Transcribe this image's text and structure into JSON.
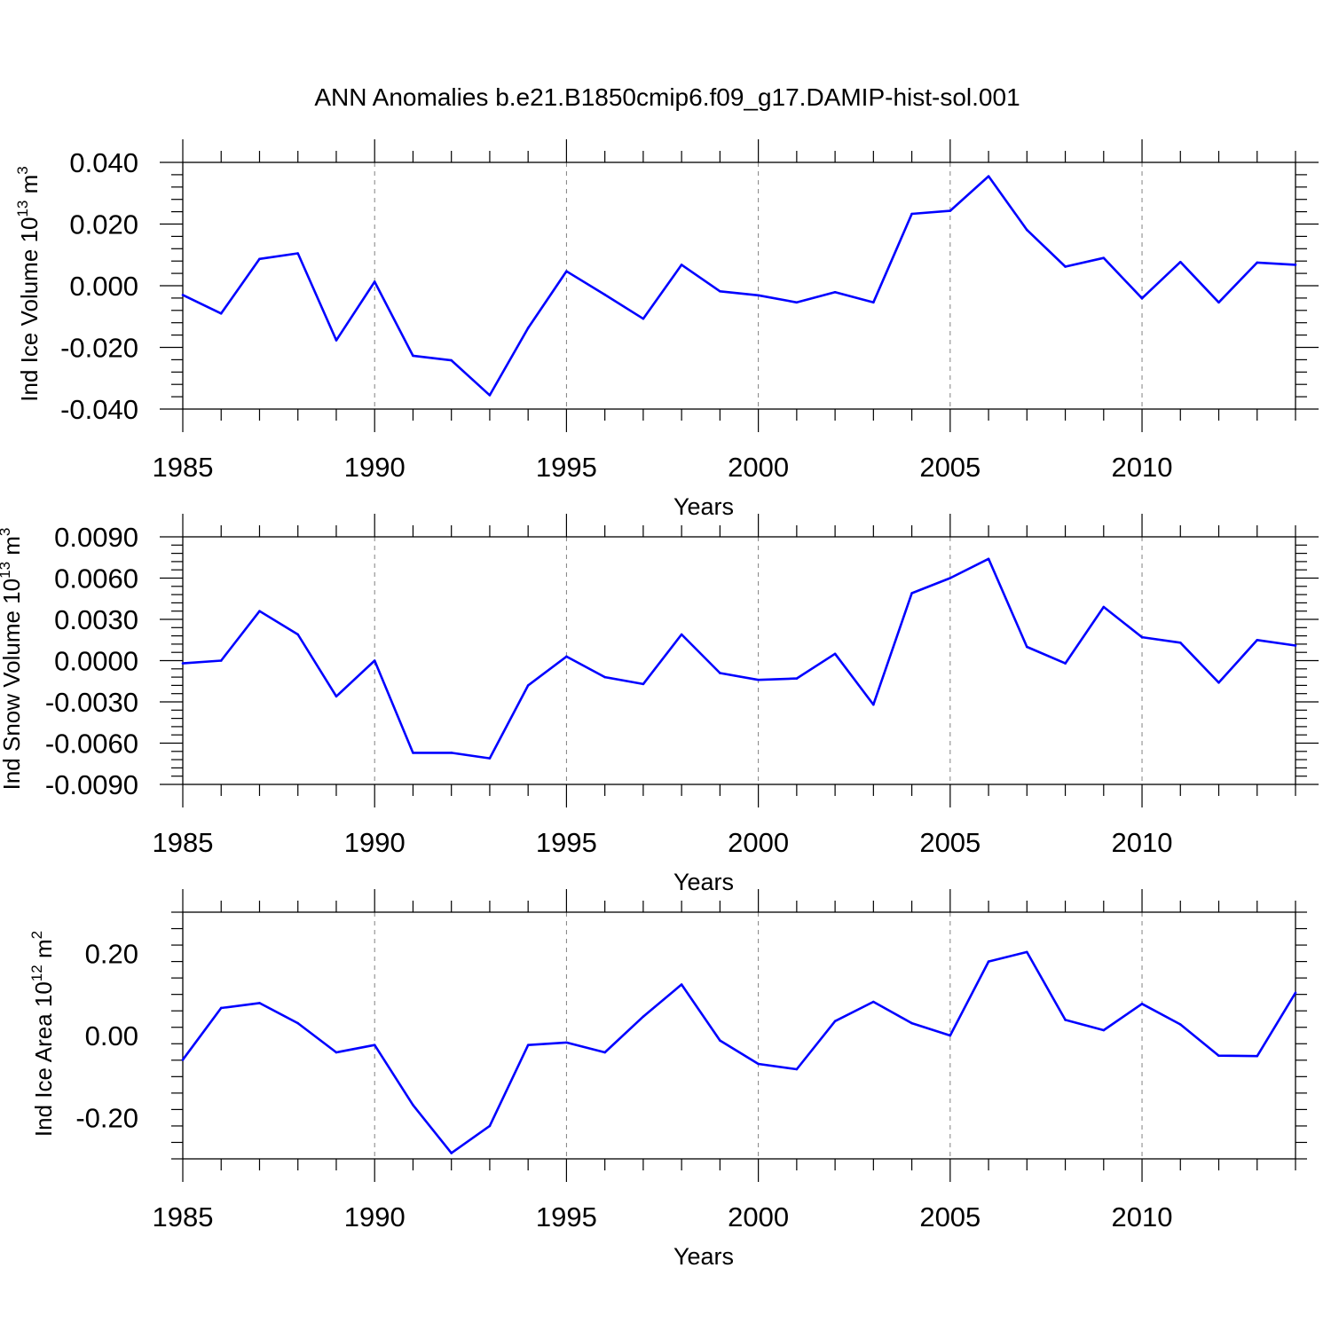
{
  "figure": {
    "title": "ANN Anomalies b.e21.B1850cmip6.f09_g17.DAMIP-hist-sol.001"
  },
  "chart_data": [
    {
      "type": "line",
      "title": "",
      "xlabel": "Years",
      "ylabel": "Ind Ice Volume 10",
      "ylabel_sup": "13",
      "ylabel_unit": "m",
      "ylabel_unit_sup": "3",
      "xlim": [
        1985,
        2014
      ],
      "ylim": [
        -0.04,
        0.04
      ],
      "xticks": [
        1985,
        1990,
        1995,
        2000,
        2005,
        2010
      ],
      "xtick_labels": [
        "1985",
        "1990",
        "1995",
        "2000",
        "2005",
        "2010"
      ],
      "yticks": [
        -0.04,
        -0.02,
        0.0,
        0.02,
        0.04
      ],
      "ytick_labels": [
        "-0.040",
        "-0.020",
        "0.000",
        "0.020",
        "0.040"
      ],
      "grid": "vertical dashed at major x ticks",
      "color": "#0000ff",
      "x": [
        1985,
        1986,
        1987,
        1988,
        1989,
        1990,
        1991,
        1992,
        1993,
        1994,
        1995,
        1996,
        1997,
        1998,
        1999,
        2000,
        2001,
        2002,
        2003,
        2004,
        2005,
        2006,
        2007,
        2008,
        2009,
        2010,
        2011,
        2012,
        2013,
        2014
      ],
      "values": [
        -0.003,
        -0.009,
        0.0087,
        0.0105,
        -0.0177,
        0.0013,
        -0.0227,
        -0.0242,
        -0.0355,
        -0.0137,
        0.0047,
        -0.0029,
        -0.0107,
        0.0068,
        -0.0018,
        -0.0031,
        -0.0054,
        -0.0021,
        -0.0054,
        0.0233,
        0.0243,
        0.0355,
        0.0181,
        0.0062,
        0.009,
        -0.0041,
        0.0077,
        -0.0054,
        0.0075,
        0.0068
      ]
    },
    {
      "type": "line",
      "title": "",
      "xlabel": "Years",
      "ylabel": "Ind Snow Volume 10",
      "ylabel_sup": "13",
      "ylabel_unit": "m",
      "ylabel_unit_sup": "3",
      "xlim": [
        1985,
        2014
      ],
      "ylim": [
        -0.009,
        0.009
      ],
      "xticks": [
        1985,
        1990,
        1995,
        2000,
        2005,
        2010
      ],
      "xtick_labels": [
        "1985",
        "1990",
        "1995",
        "2000",
        "2005",
        "2010"
      ],
      "yticks": [
        -0.009,
        -0.006,
        -0.003,
        0.0,
        0.003,
        0.006,
        0.009
      ],
      "ytick_labels": [
        "-0.0090",
        "-0.0060",
        "-0.0030",
        "0.0000",
        "0.0030",
        "0.0060",
        "0.0090"
      ],
      "grid": "vertical dashed at major x ticks",
      "color": "#0000ff",
      "x": [
        1985,
        1986,
        1987,
        1988,
        1989,
        1990,
        1991,
        1992,
        1993,
        1994,
        1995,
        1996,
        1997,
        1998,
        1999,
        2000,
        2001,
        2002,
        2003,
        2004,
        2005,
        2006,
        2007,
        2008,
        2009,
        2010,
        2011,
        2012,
        2013,
        2014
      ],
      "values": [
        -0.0002,
        0.0,
        0.0036,
        0.0019,
        -0.0026,
        0.0,
        -0.0067,
        -0.0067,
        -0.0071,
        -0.0018,
        0.0003,
        -0.0012,
        -0.0017,
        0.0019,
        -0.0009,
        -0.0014,
        -0.0013,
        0.0005,
        -0.0032,
        0.0049,
        0.006,
        0.0074,
        0.001,
        -0.0002,
        0.0039,
        0.0017,
        0.0013,
        -0.0016,
        0.0015,
        0.0011
      ]
    },
    {
      "type": "line",
      "title": "",
      "xlabel": "Years",
      "ylabel": "Ind Ice Area 10",
      "ylabel_sup": "12",
      "ylabel_unit": "m",
      "ylabel_unit_sup": "2",
      "xlim": [
        1985,
        2014
      ],
      "ylim": [
        -0.3,
        0.3
      ],
      "xticks": [
        1985,
        1990,
        1995,
        2000,
        2005,
        2010
      ],
      "xtick_labels": [
        "1985",
        "1990",
        "1995",
        "2000",
        "2005",
        "2010"
      ],
      "yticks": [
        -0.2,
        0.0,
        0.2
      ],
      "ytick_labels": [
        "-0.20",
        "0.00",
        "0.20"
      ],
      "grid": "vertical dashed at major x ticks",
      "color": "#0000ff",
      "x": [
        1985,
        1986,
        1987,
        1988,
        1989,
        1990,
        1991,
        1992,
        1993,
        1994,
        1995,
        1996,
        1997,
        1998,
        1999,
        2000,
        2001,
        2002,
        2003,
        2004,
        2005,
        2006,
        2007,
        2008,
        2009,
        2010,
        2011,
        2012,
        2013,
        2014
      ],
      "values": [
        -0.059,
        0.067,
        0.079,
        0.03,
        -0.041,
        -0.023,
        -0.169,
        -0.286,
        -0.22,
        -0.023,
        -0.017,
        -0.041,
        0.046,
        0.124,
        -0.012,
        -0.069,
        -0.082,
        0.035,
        0.082,
        0.03,
        0.0,
        0.18,
        0.203,
        0.038,
        0.013,
        0.077,
        0.027,
        -0.049,
        -0.05,
        0.104
      ]
    }
  ]
}
